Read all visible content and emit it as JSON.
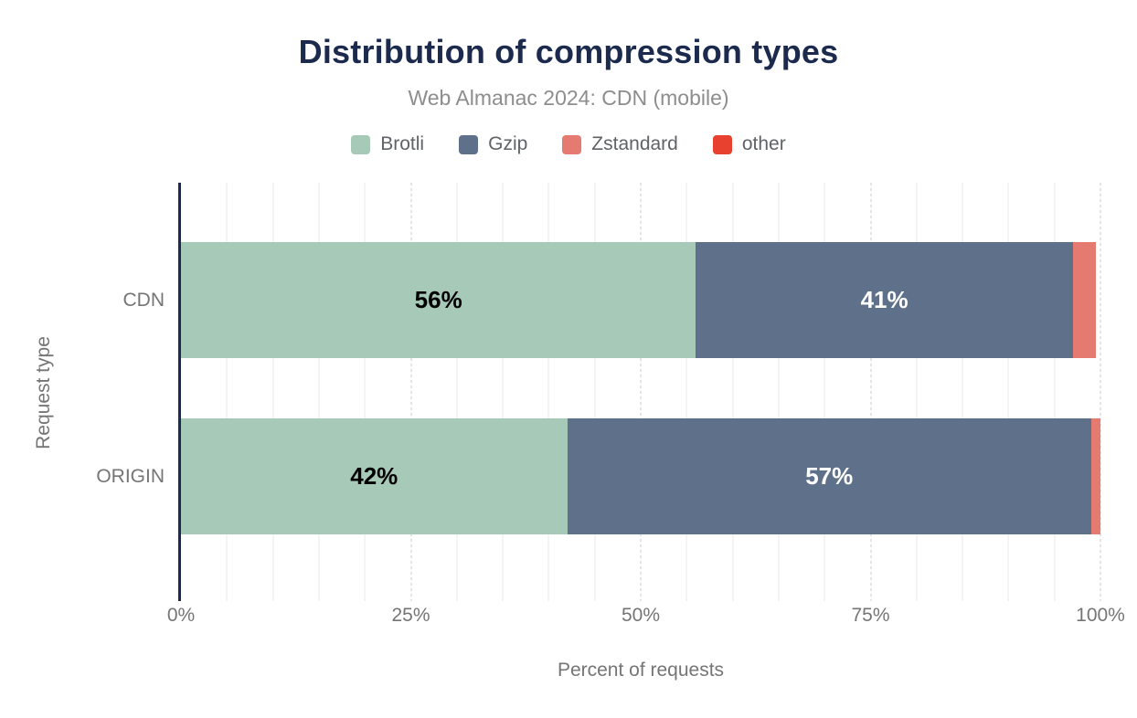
{
  "title": "Distribution of compression types",
  "subtitle": "Web Almanac 2024: CDN (mobile)",
  "colors": {
    "title": "#1b2a4d",
    "axis_line": "#1b2a4d",
    "muted_text": "#757575",
    "legend_text": "#5f6368",
    "subtitle_text": "#8d8d8d",
    "brotli": "#a7c9b8",
    "gzip": "#5f718a",
    "zstandard": "#e57b70",
    "other": "#e8412f"
  },
  "chart_data": {
    "type": "bar",
    "stacked": true,
    "orientation": "horizontal",
    "title": "Distribution of compression types",
    "subtitle": "Web Almanac 2024: CDN (mobile)",
    "xlabel": "Percent of requests",
    "ylabel": "Request type",
    "xlim": [
      0,
      100
    ],
    "grid": "vertical",
    "minor_grid_step": 5,
    "major_grid_step": 25,
    "legend_position": "top",
    "categories": [
      "CDN",
      "ORIGIN"
    ],
    "x_ticks": [
      "0%",
      "25%",
      "50%",
      "75%",
      "100%"
    ],
    "series": [
      {
        "name": "Brotli",
        "color": "#a7c9b8",
        "label_color": "#000000",
        "values": [
          56,
          42
        ],
        "labels": [
          "56%",
          "42%"
        ]
      },
      {
        "name": "Gzip",
        "color": "#5f718a",
        "label_color": "#ffffff",
        "values": [
          41,
          57
        ],
        "labels": [
          "41%",
          "57%"
        ]
      },
      {
        "name": "Zstandard",
        "color": "#e57b70",
        "label_color": "#000000",
        "values": [
          2.5,
          1
        ],
        "labels": [
          "",
          ""
        ]
      },
      {
        "name": "other",
        "color": "#e8412f",
        "label_color": "#ffffff",
        "values": [
          0,
          0
        ],
        "labels": [
          "",
          ""
        ]
      }
    ]
  }
}
